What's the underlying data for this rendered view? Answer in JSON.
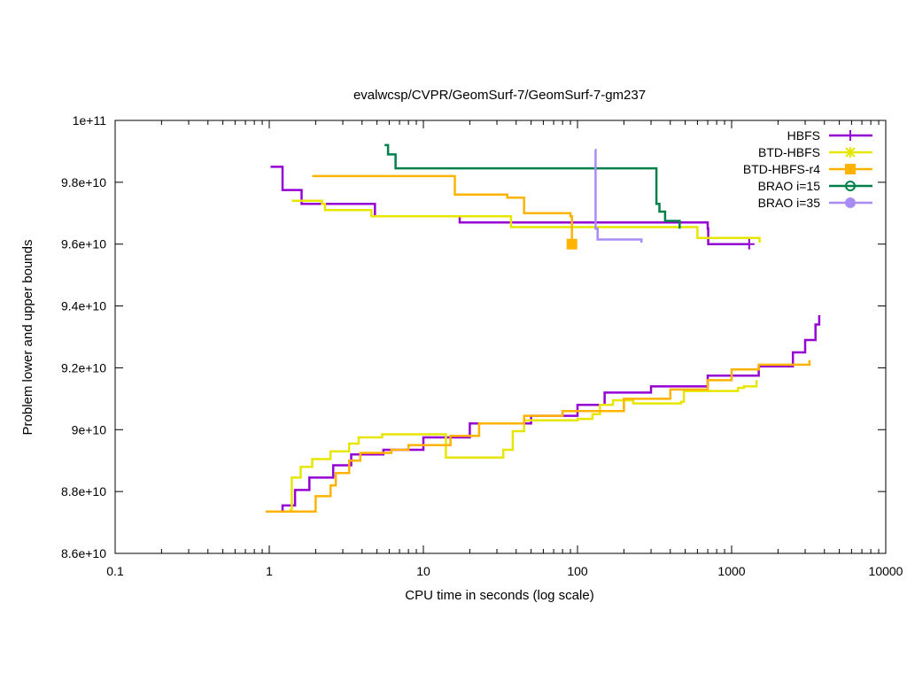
{
  "chart_data": {
    "type": "line",
    "title": "evalwcsp/CVPR/GeomSurf-7/GeomSurf-7-gm237",
    "xlabel": "CPU time in seconds (log scale)",
    "ylabel": "Problem lower and upper bounds",
    "xscale": "log",
    "xlim": [
      0.1,
      10000
    ],
    "ylim": [
      86000000000,
      100000000000
    ],
    "xticks": [
      0.1,
      1,
      10,
      100,
      1000,
      10000
    ],
    "xtick_labels": [
      "0.1",
      "1",
      "10",
      "100",
      "1000",
      "10000"
    ],
    "yticks": [
      86000000000,
      88000000000,
      90000000000,
      92000000000,
      94000000000,
      96000000000,
      98000000000,
      100000000000
    ],
    "ytick_labels": [
      "8.6e+10",
      "8.8e+10",
      "9e+10",
      "9.2e+10",
      "9.4e+10",
      "9.6e+10",
      "9.8e+10",
      "1e+11"
    ],
    "legend_position": "top-right",
    "series": [
      {
        "name": "HBFS",
        "color": "#9400d3",
        "marker": "plus",
        "upper": [
          [
            1.02,
            98.5
          ],
          [
            1.2,
            98.5
          ],
          [
            1.22,
            97.75
          ],
          [
            1.6,
            97.75
          ],
          [
            1.62,
            97.3
          ],
          [
            4.8,
            97.3
          ],
          [
            4.85,
            96.9
          ],
          [
            17,
            96.9
          ],
          [
            17.2,
            96.7
          ],
          [
            700,
            96.5
          ],
          [
            705,
            96.0
          ],
          [
            1300,
            96.0
          ]
        ],
        "lower": [
          [
            0.95,
            87.35
          ],
          [
            1.2,
            87.35
          ],
          [
            1.22,
            87.55
          ],
          [
            1.45,
            87.55
          ],
          [
            1.47,
            88.05
          ],
          [
            1.8,
            88.05
          ],
          [
            1.82,
            88.45
          ],
          [
            2.6,
            88.85
          ],
          [
            3.4,
            89.2
          ],
          [
            5.5,
            89.35
          ],
          [
            10,
            89.75
          ],
          [
            20,
            90.2
          ],
          [
            50,
            90.45
          ],
          [
            100,
            90.8
          ],
          [
            150,
            91.2
          ],
          [
            300,
            91.4
          ],
          [
            700,
            91.75
          ],
          [
            1500,
            92.05
          ],
          [
            2500,
            92.5
          ],
          [
            3000,
            92.9
          ],
          [
            3500,
            93.4
          ],
          [
            3700,
            93.7
          ]
        ]
      },
      {
        "name": "BTD-HBFS",
        "color": "#e6e600",
        "marker": "cross",
        "upper": [
          [
            1.4,
            97.4
          ],
          [
            2.2,
            97.3
          ],
          [
            2.3,
            97.1
          ],
          [
            4.5,
            97.1
          ],
          [
            4.6,
            96.9
          ],
          [
            36,
            96.9
          ],
          [
            37,
            96.55
          ],
          [
            590,
            96.55
          ],
          [
            600,
            96.2
          ],
          [
            1500,
            96.2
          ],
          [
            1520,
            96.05
          ]
        ],
        "lower": [
          [
            1.35,
            87.4
          ],
          [
            1.4,
            88.45
          ],
          [
            1.6,
            88.8
          ],
          [
            1.9,
            89.05
          ],
          [
            2.5,
            89.3
          ],
          [
            3.3,
            89.55
          ],
          [
            3.8,
            89.75
          ],
          [
            5.4,
            89.85
          ],
          [
            12,
            89.85
          ],
          [
            14,
            89.1
          ],
          [
            28,
            89.1
          ],
          [
            33,
            89.35
          ],
          [
            38,
            89.95
          ],
          [
            45,
            90.3
          ],
          [
            100,
            90.35
          ],
          [
            125,
            90.5
          ],
          [
            140,
            90.8
          ],
          [
            170,
            90.95
          ],
          [
            230,
            90.85
          ],
          [
            470,
            90.9
          ],
          [
            490,
            91.25
          ],
          [
            1100,
            91.35
          ],
          [
            1200,
            91.4
          ],
          [
            1450,
            91.6
          ]
        ]
      },
      {
        "name": "BTD-HBFS-r4",
        "color": "#ffb300",
        "marker": "square",
        "upper": [
          [
            1.9,
            98.2
          ],
          [
            15,
            98.2
          ],
          [
            16,
            97.6
          ],
          [
            35,
            97.5
          ],
          [
            45,
            97.0
          ],
          [
            90,
            96.9
          ],
          [
            92,
            96.0
          ]
        ],
        "lower": [
          [
            0.95,
            87.35
          ],
          [
            1.95,
            87.35
          ],
          [
            2.0,
            87.85
          ],
          [
            2.5,
            88.2
          ],
          [
            2.7,
            88.6
          ],
          [
            3.3,
            89.0
          ],
          [
            3.9,
            89.25
          ],
          [
            6.2,
            89.35
          ],
          [
            8,
            89.5
          ],
          [
            15,
            89.8
          ],
          [
            23,
            90.2
          ],
          [
            45,
            90.45
          ],
          [
            80,
            90.6
          ],
          [
            200,
            91.0
          ],
          [
            400,
            91.3
          ],
          [
            700,
            91.6
          ],
          [
            1000,
            91.95
          ],
          [
            1500,
            92.1
          ],
          [
            3200,
            92.25
          ]
        ]
      },
      {
        "name": "BRAO i=15",
        "color": "#00804a",
        "marker": "circle-open",
        "upper": [
          [
            5.6,
            99.2
          ],
          [
            5.9,
            98.9
          ],
          [
            6.6,
            98.45
          ],
          [
            320,
            98.45
          ],
          [
            325,
            97.3
          ],
          [
            340,
            97.05
          ],
          [
            370,
            96.75
          ],
          [
            460,
            96.5
          ]
        ]
      },
      {
        "name": "BRAO i=35",
        "color": "#a98bf5",
        "marker": "circle",
        "upper": [
          [
            130,
            99.05
          ],
          [
            131,
            96.5
          ],
          [
            135,
            96.15
          ],
          [
            260,
            96.05
          ]
        ]
      }
    ]
  }
}
